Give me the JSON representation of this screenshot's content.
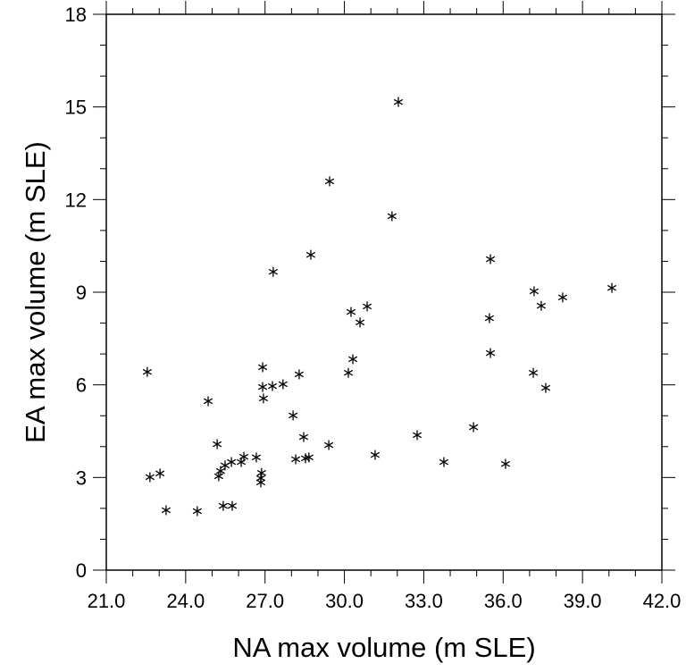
{
  "chart_data": {
    "type": "scatter",
    "title": "",
    "xlabel": "NA max volume (m SLE)",
    "ylabel": "EA max volume (m SLE)",
    "xlim": [
      21,
      42
    ],
    "ylim": [
      0,
      18
    ],
    "xticks": [
      "21.0",
      "24.0",
      "27.0",
      "30.0",
      "33.0",
      "36.0",
      "39.0",
      "42.0"
    ],
    "xtick_values": [
      21,
      24,
      27,
      30,
      33,
      36,
      39,
      42
    ],
    "yticks": [
      "0",
      "3",
      "6",
      "9",
      "12",
      "15",
      "18"
    ],
    "ytick_values": [
      0,
      3,
      6,
      9,
      12,
      15,
      18
    ],
    "minor_step": 1,
    "marker": "asterisk",
    "grid": false,
    "points": [
      [
        32.04,
        15.16
      ],
      [
        29.44,
        12.59
      ],
      [
        31.8,
        11.46
      ],
      [
        28.73,
        10.21
      ],
      [
        27.31,
        9.66
      ],
      [
        35.52,
        10.07
      ],
      [
        37.17,
        9.03
      ],
      [
        40.11,
        9.14
      ],
      [
        38.25,
        8.83
      ],
      [
        37.44,
        8.56
      ],
      [
        35.48,
        8.16
      ],
      [
        30.86,
        8.54
      ],
      [
        30.25,
        8.36
      ],
      [
        30.59,
        8.02
      ],
      [
        30.32,
        6.83
      ],
      [
        30.15,
        6.39
      ],
      [
        35.52,
        7.03
      ],
      [
        37.14,
        6.39
      ],
      [
        37.61,
        5.9
      ],
      [
        22.55,
        6.42
      ],
      [
        26.91,
        6.57
      ],
      [
        26.91,
        5.93
      ],
      [
        27.28,
        5.96
      ],
      [
        27.68,
        6.02
      ],
      [
        26.94,
        5.56
      ],
      [
        28.29,
        6.34
      ],
      [
        24.85,
        5.47
      ],
      [
        28.06,
        5.01
      ],
      [
        25.19,
        4.08
      ],
      [
        28.46,
        4.31
      ],
      [
        29.41,
        4.05
      ],
      [
        32.75,
        4.37
      ],
      [
        34.88,
        4.63
      ],
      [
        31.16,
        3.73
      ],
      [
        33.76,
        3.5
      ],
      [
        36.09,
        3.44
      ],
      [
        28.16,
        3.59
      ],
      [
        28.53,
        3.62
      ],
      [
        28.66,
        3.65
      ],
      [
        26.67,
        3.65
      ],
      [
        26.2,
        3.67
      ],
      [
        26.1,
        3.5
      ],
      [
        25.73,
        3.5
      ],
      [
        25.49,
        3.39
      ],
      [
        25.32,
        3.21
      ],
      [
        25.25,
        3.04
      ],
      [
        26.87,
        3.15
      ],
      [
        26.84,
        2.98
      ],
      [
        26.84,
        2.84
      ],
      [
        22.65,
        3.01
      ],
      [
        23.03,
        3.13
      ],
      [
        23.26,
        1.94
      ],
      [
        24.44,
        1.91
      ],
      [
        25.42,
        2.08
      ],
      [
        25.76,
        2.08
      ]
    ]
  }
}
